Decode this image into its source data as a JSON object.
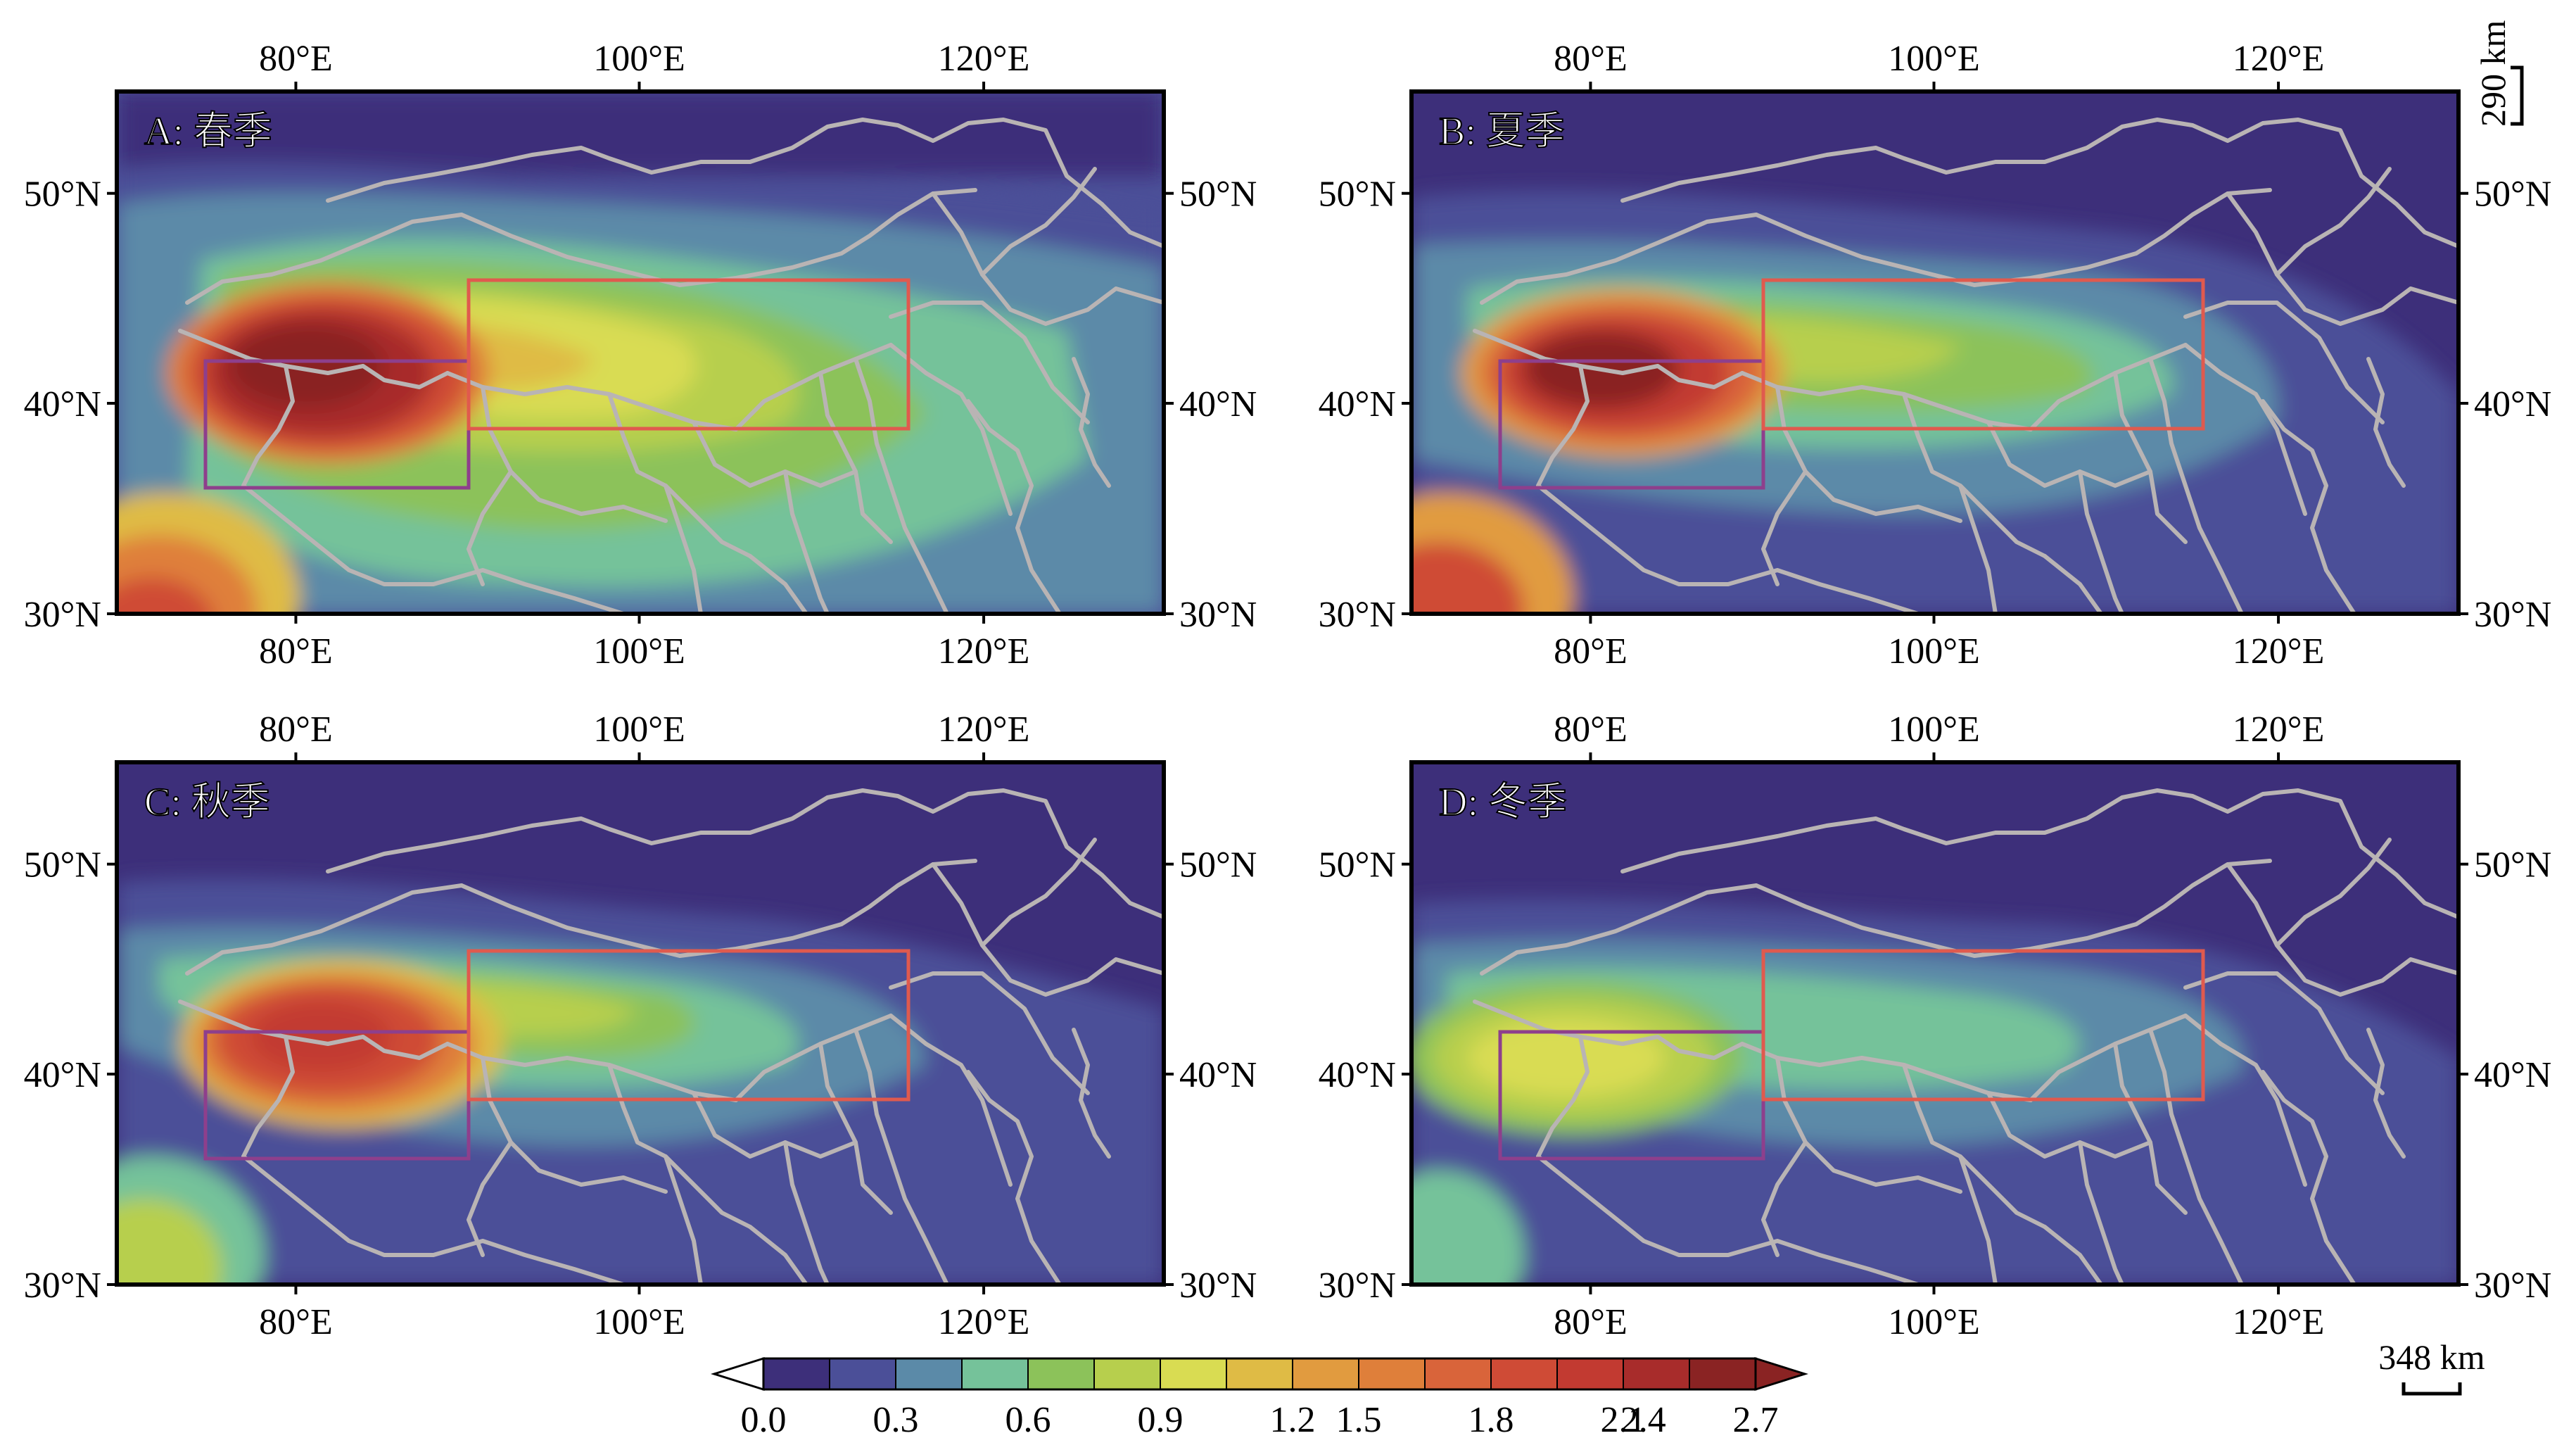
{
  "panels": [
    {
      "label": "A: 春季"
    },
    {
      "label": "B: 夏季"
    },
    {
      "label": "C: 秋季"
    },
    {
      "label": "D: 冬季"
    }
  ],
  "axes": {
    "lon_ticks": [
      "80°E",
      "100°E",
      "120°E"
    ],
    "lat_ticks": [
      "30°N",
      "40°N",
      "50°N"
    ]
  },
  "scalebar": {
    "vertical_label": "290 km",
    "horizontal_label": "348 km"
  },
  "colorbar": {
    "tick_labels": [
      "0.0",
      "0.3",
      "0.6",
      "0.9",
      "1.2",
      "1.5",
      "1.8",
      "2.1",
      "2.4",
      "2.7"
    ],
    "colors": [
      "#3d2f7a",
      "#4b4f98",
      "#5b8aa8",
      "#75c29a",
      "#8cc25a",
      "#b7cf4d",
      "#d9dc52",
      "#dfbb45",
      "#e19b3f",
      "#df7f3a",
      "#d9643a",
      "#cf4b36",
      "#c23a31",
      "#a82c2b",
      "#8a2323"
    ]
  },
  "colors": {
    "boundary": "#b9b4b4",
    "box_east": "#e05a4e",
    "box_west": "#8e3f8c",
    "frame": "#000000"
  }
}
